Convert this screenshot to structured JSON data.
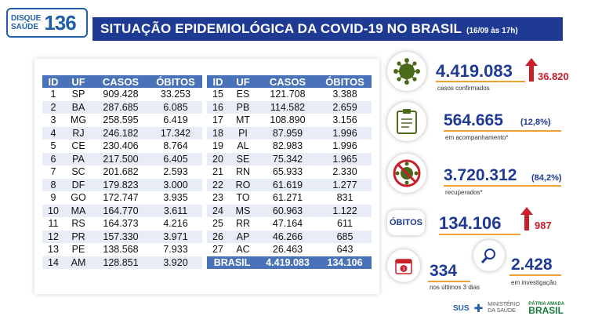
{
  "header": {
    "logo_line1": "DISQUE",
    "logo_line2": "SAÚDE",
    "logo_number": "136",
    "title": "SITUAÇÃO EPIDEMIOLÓGICA DA COVID-19 NO BRASIL",
    "date": "(16/09 às 17h)"
  },
  "table": {
    "columns": [
      "ID",
      "UF",
      "CASOS",
      "ÓBITOS"
    ],
    "left_rows": [
      [
        "1",
        "SP",
        "909.428",
        "33.253"
      ],
      [
        "2",
        "BA",
        "287.685",
        "6.085"
      ],
      [
        "3",
        "MG",
        "258.595",
        "6.419"
      ],
      [
        "4",
        "RJ",
        "246.182",
        "17.342"
      ],
      [
        "5",
        "CE",
        "230.406",
        "8.764"
      ],
      [
        "6",
        "PA",
        "217.500",
        "6.405"
      ],
      [
        "7",
        "SC",
        "201.682",
        "2.593"
      ],
      [
        "8",
        "DF",
        "179.823",
        "3.000"
      ],
      [
        "9",
        "GO",
        "172.747",
        "3.935"
      ],
      [
        "10",
        "MA",
        "164.770",
        "3.611"
      ],
      [
        "11",
        "RS",
        "164.373",
        "4.216"
      ],
      [
        "12",
        "PR",
        "157.330",
        "3.971"
      ],
      [
        "13",
        "PE",
        "138.568",
        "7.933"
      ],
      [
        "14",
        "AM",
        "128.851",
        "3.920"
      ]
    ],
    "right_rows": [
      [
        "15",
        "ES",
        "121.708",
        "3.388"
      ],
      [
        "16",
        "PB",
        "114.582",
        "2.659"
      ],
      [
        "17",
        "MT",
        "108.890",
        "3.156"
      ],
      [
        "18",
        "PI",
        "87.959",
        "1.996"
      ],
      [
        "19",
        "AL",
        "82.983",
        "1.996"
      ],
      [
        "20",
        "SE",
        "75.342",
        "1.965"
      ],
      [
        "21",
        "RN",
        "65.933",
        "2.330"
      ],
      [
        "22",
        "RO",
        "61.619",
        "1.277"
      ],
      [
        "23",
        "TO",
        "61.271",
        "831"
      ],
      [
        "24",
        "MS",
        "60.963",
        "1.122"
      ],
      [
        "25",
        "RR",
        "47.164",
        "611"
      ],
      [
        "26",
        "AP",
        "46.266",
        "685"
      ],
      [
        "27",
        "AC",
        "26.463",
        "643"
      ]
    ],
    "total": {
      "label": "BRASIL",
      "casos": "4.419.083",
      "obitos": "134.106"
    }
  },
  "stats": {
    "confirmed": {
      "value": "4.419.083",
      "label": "casos confirmados",
      "increase": "36.820",
      "icon": "virus-icon"
    },
    "monitoring": {
      "value": "564.665",
      "pct": "(12,8%)",
      "label": "em acompanhamento*",
      "icon": "clipboard-icon"
    },
    "recovered": {
      "value": "3.720.312",
      "pct": "(84,2%)",
      "label": "recuperados*",
      "icon": "crossed-virus-icon"
    },
    "deaths": {
      "badge": "ÓBITOS",
      "value": "134.106",
      "increase": "987"
    },
    "last3days": {
      "value": "334",
      "label": "nos últimos 3 dias",
      "icon": "calendar-icon",
      "calendar_day": "3"
    },
    "investigation": {
      "value": "2.428",
      "label": "em investigação",
      "icon": "magnifier-icon"
    }
  },
  "footer": {
    "sus": "SUS",
    "ministry": "MINISTÉRIO DA SAÚDE",
    "patria": "PÁTRIA AMADA",
    "brasil": "BRASIL"
  },
  "colors": {
    "navy": "#1f3a93",
    "table_header": "#4a72b8",
    "accent_orange": "#f0a030",
    "increase_red": "#c8202a"
  }
}
